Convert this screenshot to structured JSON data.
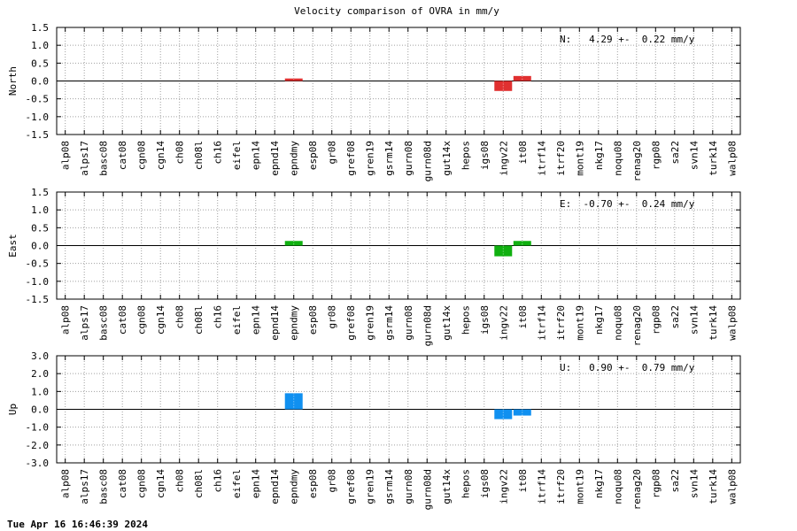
{
  "title": "Velocity comparison of OVRA in mm/y",
  "timestamp": "Tue Apr 16 16:46:39 2024",
  "chart_data": [
    {
      "type": "bar",
      "ylabel": "North",
      "annotation": "N:   4.29 +-  0.22 mm/y",
      "yticks": [
        "1.5",
        "1.0",
        "0.5",
        "0.0",
        "-0.5",
        "-1.0",
        "-1.5"
      ],
      "ylim": [
        -1.5,
        1.5
      ],
      "color": "#e03030",
      "categories": [
        "alp08",
        "alps17",
        "basc08",
        "cat08",
        "cgn08",
        "cgn14",
        "ch08",
        "ch08l",
        "ch16",
        "eifel",
        "epn14",
        "epnd14",
        "epndmy",
        "esp08",
        "gr08",
        "gref08",
        "gren19",
        "gsrm14",
        "gurn08",
        "gurn08d",
        "gut14x",
        "hepos",
        "igs08",
        "ingv22",
        "it08",
        "itrf14",
        "itrf20",
        "mont19",
        "nkg17",
        "noqu08",
        "renag20",
        "rgp08",
        "sa22",
        "svn14",
        "turk14",
        "walp08"
      ],
      "values": [
        null,
        null,
        null,
        null,
        null,
        null,
        null,
        null,
        null,
        null,
        null,
        null,
        0.07,
        null,
        null,
        null,
        null,
        null,
        null,
        null,
        null,
        null,
        null,
        -0.28,
        0.14,
        null,
        null,
        null,
        null,
        null,
        null,
        null,
        null,
        null,
        null,
        null
      ]
    },
    {
      "type": "bar",
      "ylabel": "East",
      "annotation": "E:  -0.70 +-  0.24 mm/y",
      "yticks": [
        "1.5",
        "1.0",
        "0.5",
        "0.0",
        "-0.5",
        "-1.0",
        "-1.5"
      ],
      "ylim": [
        -1.5,
        1.5
      ],
      "color": "#10b010",
      "categories": [
        "alp08",
        "alps17",
        "basc08",
        "cat08",
        "cgn08",
        "cgn14",
        "ch08",
        "ch08l",
        "ch16",
        "eifel",
        "epn14",
        "epnd14",
        "epndmy",
        "esp08",
        "gr08",
        "gref08",
        "gren19",
        "gsrm14",
        "gurn08",
        "gurn08d",
        "gut14x",
        "hepos",
        "igs08",
        "ingv22",
        "it08",
        "itrf14",
        "itrf20",
        "mont19",
        "nkg17",
        "noqu08",
        "renag20",
        "rgp08",
        "sa22",
        "svn14",
        "turk14",
        "walp08"
      ],
      "values": [
        null,
        null,
        null,
        null,
        null,
        null,
        null,
        null,
        null,
        null,
        null,
        null,
        0.13,
        null,
        null,
        null,
        null,
        null,
        null,
        null,
        null,
        null,
        null,
        -0.3,
        0.13,
        null,
        null,
        null,
        null,
        null,
        null,
        null,
        null,
        null,
        null,
        null
      ]
    },
    {
      "type": "bar",
      "ylabel": "Up",
      "annotation": "U:   0.90 +-  0.79 mm/y",
      "yticks": [
        "3.0",
        "2.0",
        "1.0",
        "0.0",
        "-1.0",
        "-2.0",
        "-3.0"
      ],
      "ylim": [
        -3.0,
        3.0
      ],
      "color": "#1090f0",
      "categories": [
        "alp08",
        "alps17",
        "basc08",
        "cat08",
        "cgn08",
        "cgn14",
        "ch08",
        "ch08l",
        "ch16",
        "eifel",
        "epn14",
        "epnd14",
        "epndmy",
        "esp08",
        "gr08",
        "gref08",
        "gren19",
        "gsrm14",
        "gurn08",
        "gurn08d",
        "gut14x",
        "hepos",
        "igs08",
        "ingv22",
        "it08",
        "itrf14",
        "itrf20",
        "mont19",
        "nkg17",
        "noqu08",
        "renag20",
        "rgp08",
        "sa22",
        "svn14",
        "turk14",
        "walp08"
      ],
      "values": [
        null,
        null,
        null,
        null,
        null,
        null,
        null,
        null,
        null,
        null,
        null,
        null,
        0.9,
        null,
        null,
        null,
        null,
        null,
        null,
        null,
        null,
        null,
        null,
        -0.55,
        -0.35,
        null,
        null,
        null,
        null,
        null,
        null,
        null,
        null,
        null,
        null,
        null
      ]
    }
  ]
}
